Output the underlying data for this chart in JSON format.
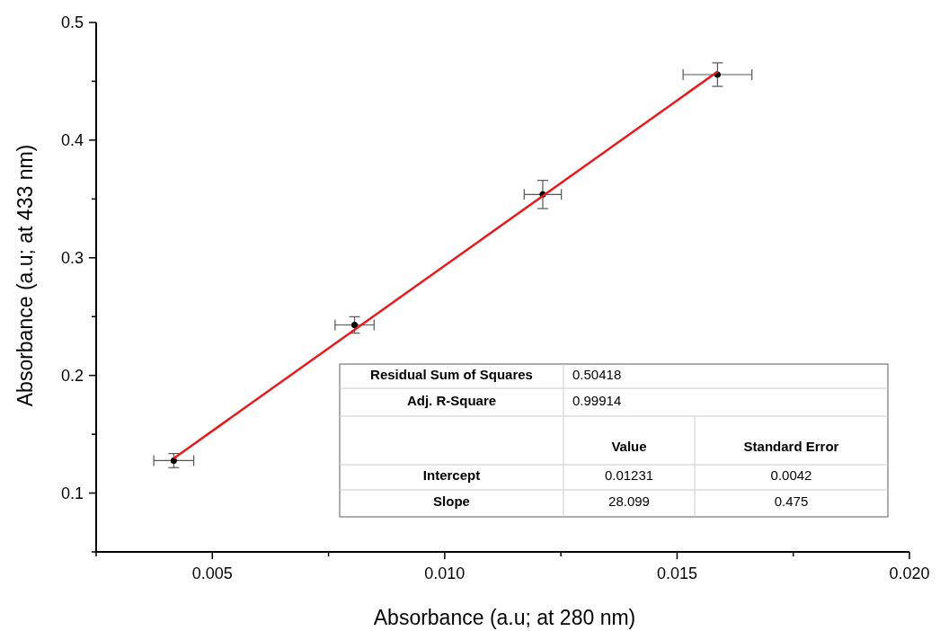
{
  "chart_data": {
    "type": "scatter",
    "xlabel": "Absorbance (a.u; at 280 nm)",
    "ylabel": "Absorbance (a.u; at 433 nm)",
    "xlim": [
      0.0025,
      0.02
    ],
    "xticks": [
      {
        "value": 0.0025,
        "label": null
      },
      {
        "value": 0.005,
        "label": "0.005"
      },
      {
        "value": 0.0075,
        "label": null
      },
      {
        "value": 0.01,
        "label": "0.010"
      },
      {
        "value": 0.0125,
        "label": null
      },
      {
        "value": 0.015,
        "label": "0.015"
      },
      {
        "value": 0.0175,
        "label": null
      },
      {
        "value": 0.02,
        "label": "0.020"
      }
    ],
    "ylim": [
      0.05,
      0.5
    ],
    "yticks": [
      {
        "value": 0.05,
        "label": null
      },
      0.1,
      {
        "value": 0.15,
        "label": null
      },
      0.2,
      {
        "value": 0.25,
        "label": null
      },
      0.3,
      {
        "value": 0.35,
        "label": null
      },
      0.4,
      {
        "value": 0.45,
        "label": null
      },
      0.5
    ],
    "marker": "circle",
    "series": [
      {
        "color": "#000000",
        "x": [
          0.00417,
          0.00806,
          0.01211,
          0.01587
        ],
        "values": [
          0.1276,
          0.2429,
          0.3538,
          0.4557
        ],
        "errors": [
          0.006,
          0.007,
          0.012,
          0.01
        ],
        "xerrors": [
          0.00043,
          0.00042,
          0.0004,
          0.00074
        ]
      },
      {
        "type": "line",
        "color": "#e8191b",
        "x": [
          0.00417,
          0.01587
        ],
        "values": [
          0.1295,
          0.4582
        ],
        "marker": "none"
      }
    ],
    "annotations": [
      "Residual Sum of Squares",
      "0.50418",
      "Adj. R-Square",
      "0.99914",
      "Value",
      "Standard Error",
      "Intercept",
      "0.01231",
      "0.0042",
      "Slope",
      "28.099",
      "0.475"
    ]
  }
}
